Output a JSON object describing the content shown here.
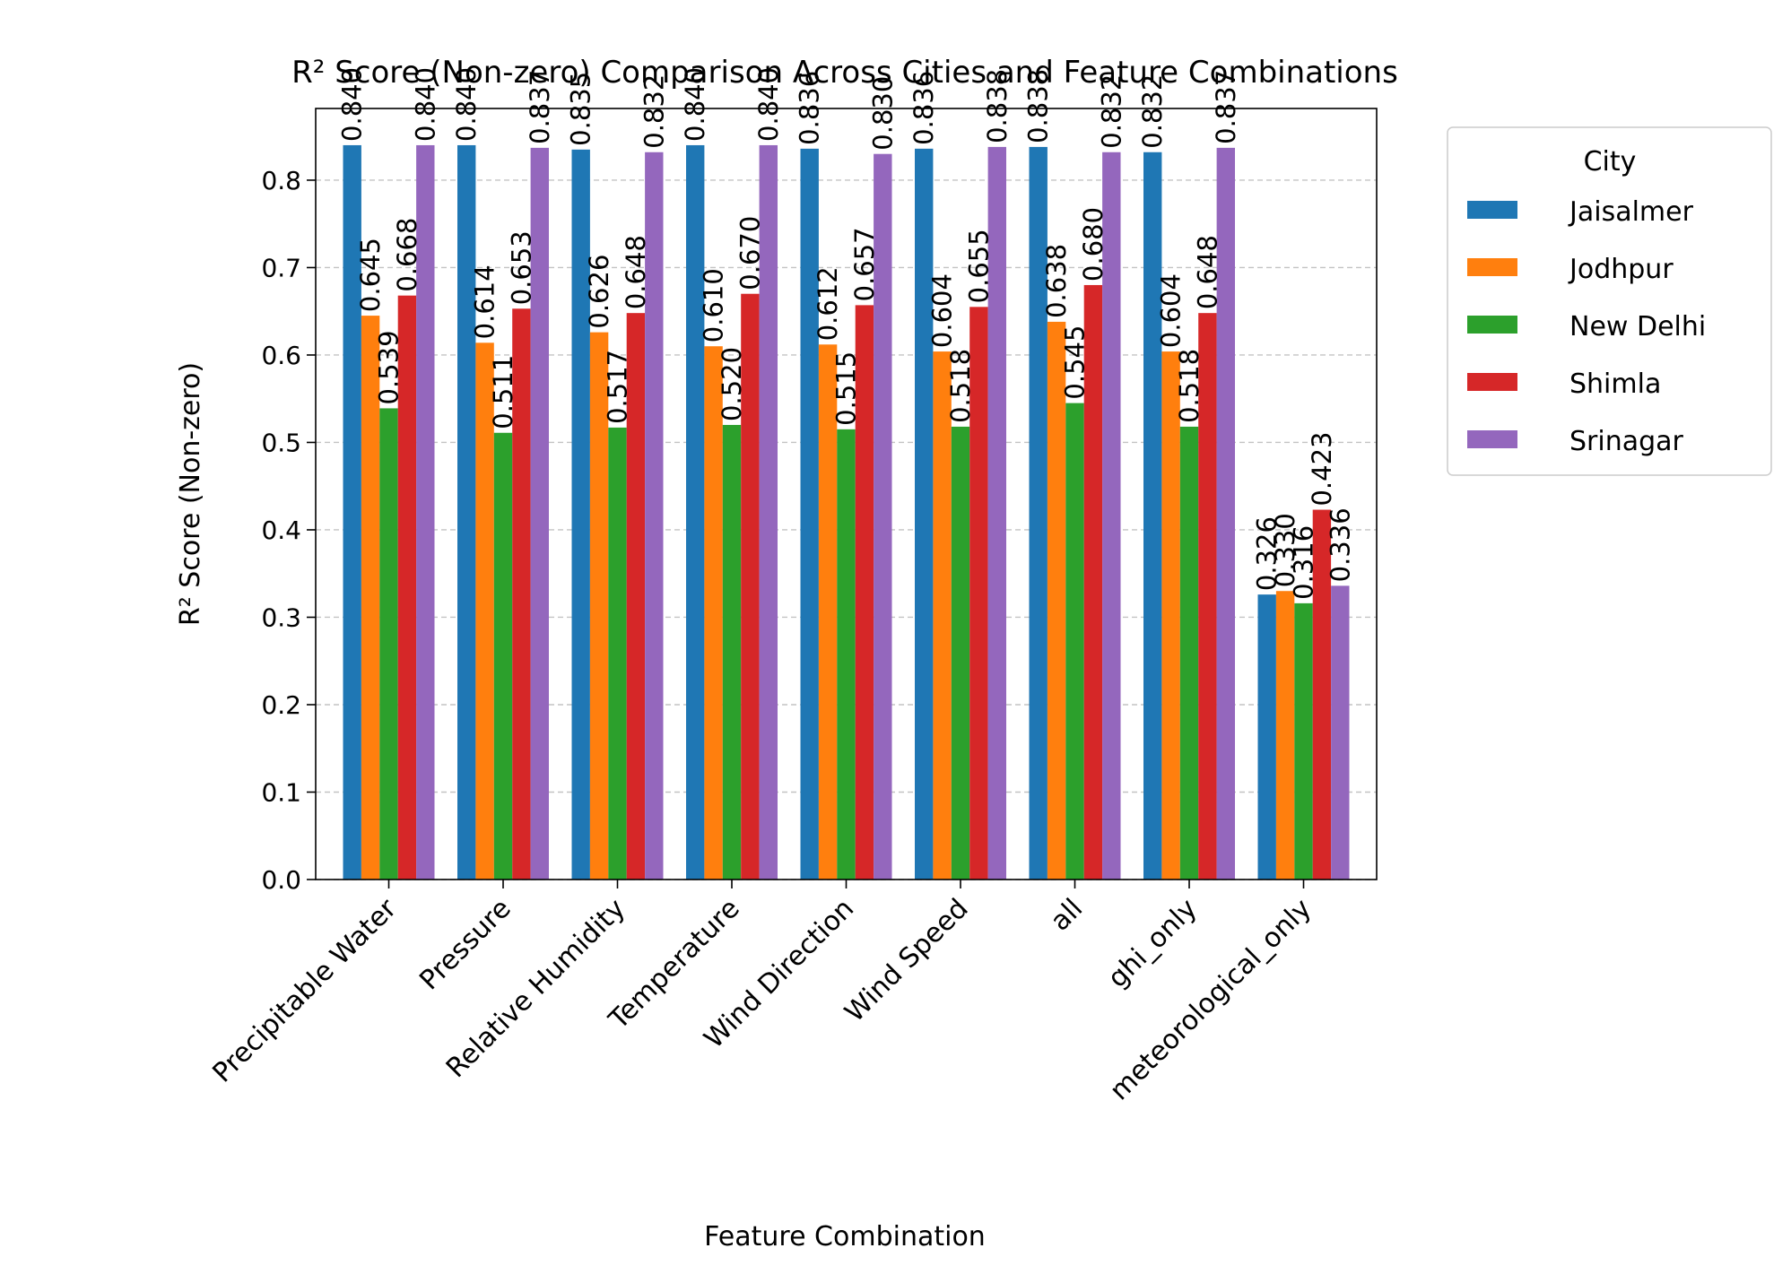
{
  "chart_data": {
    "type": "bar",
    "title": "R² Score (Non-zero) Comparison Across Cities and Feature Combinations",
    "xlabel": "Feature Combination",
    "ylabel": "R² Score (Non-zero)",
    "ylim": [
      0.0,
      0.882
    ],
    "yticks": [
      "0.0",
      "0.1",
      "0.2",
      "0.3",
      "0.4",
      "0.5",
      "0.6",
      "0.7",
      "0.8"
    ],
    "grid": "y-dashed",
    "legend_title": "City",
    "legend_position": "outside-right-top",
    "categories": [
      "Precipitable Water",
      "Pressure",
      "Relative Humidity",
      "Temperature",
      "Wind Direction",
      "Wind Speed",
      "all",
      "ghi_only",
      "meteorological_only"
    ],
    "series": [
      {
        "name": "Jaisalmer",
        "color": "#1f77b4",
        "values": [
          0.84,
          0.84,
          0.835,
          0.84,
          0.836,
          0.836,
          0.838,
          0.832,
          0.326
        ],
        "labels": [
          "0.840",
          "0.840",
          "0.835",
          "0.840",
          "0.836",
          "0.836",
          "0.838",
          "0.832",
          "0.326"
        ]
      },
      {
        "name": "Jodhpur",
        "color": "#ff7f0e",
        "values": [
          0.645,
          0.614,
          0.626,
          0.61,
          0.612,
          0.604,
          0.638,
          0.604,
          0.33
        ],
        "labels": [
          "0.645",
          "0.614",
          "0.626",
          "0.610",
          "0.612",
          "0.604",
          "0.638",
          "0.604",
          "0.330"
        ]
      },
      {
        "name": "New Delhi",
        "color": "#2ca02c",
        "values": [
          0.539,
          0.511,
          0.517,
          0.52,
          0.515,
          0.518,
          0.545,
          0.518,
          0.316
        ],
        "labels": [
          "0.539",
          "0.511",
          "0.517",
          "0.520",
          "0.515",
          "0.518",
          "0.545",
          "0.518",
          "0.316"
        ]
      },
      {
        "name": "Shimla",
        "color": "#d62728",
        "values": [
          0.668,
          0.653,
          0.648,
          0.67,
          0.657,
          0.655,
          0.68,
          0.648,
          0.423
        ],
        "labels": [
          "0.668",
          "0.653",
          "0.648",
          "0.670",
          "0.657",
          "0.655",
          "0.680",
          "0.648",
          "0.423"
        ]
      },
      {
        "name": "Srinagar",
        "color": "#9467bd",
        "values": [
          0.84,
          0.837,
          0.832,
          0.84,
          0.83,
          0.838,
          0.832,
          0.837,
          0.336
        ],
        "labels": [
          "0.840",
          "0.837",
          "0.832",
          "0.840",
          "0.830",
          "0.838",
          "0.832",
          "0.837",
          "0.336"
        ]
      }
    ]
  }
}
